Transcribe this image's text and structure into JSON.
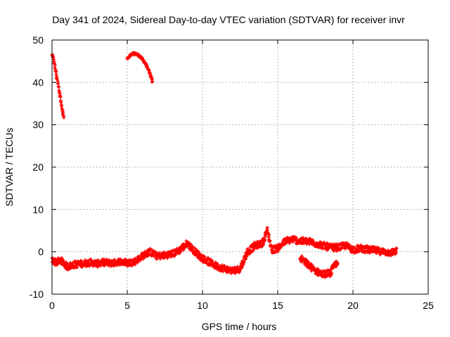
{
  "colors": {
    "series": "#ff0000",
    "grid": "#a0a0a0",
    "axis": "#000000",
    "background": "#ffffff"
  },
  "chart_data": {
    "type": "scatter",
    "title": "Day 341 of 2024, Sidereal Day-to-day VTEC variation (SDTVAR) for receiver invr",
    "xlabel": "GPS time / hours",
    "ylabel": "SDTVAR / TECUs",
    "xlim": [
      0,
      25
    ],
    "ylim": [
      -10,
      50
    ],
    "xticks": [
      0,
      5,
      10,
      15,
      20,
      25
    ],
    "yticks": [
      -10,
      0,
      10,
      20,
      30,
      40,
      50
    ],
    "grid": true,
    "legend": "none",
    "series": [
      {
        "name": "SDTVAR",
        "segments": [
          {
            "x": [
              0.0,
              0.1,
              0.2,
              0.3,
              0.4,
              0.5,
              0.6,
              0.7,
              0.8
            ],
            "y": [
              46.5,
              45.5,
              43.5,
              41.5,
              39.5,
              37.5,
              35.5,
              33.0,
              31.5
            ]
          },
          {
            "x": [
              5.0,
              5.2,
              5.4,
              5.6,
              5.8,
              6.0,
              6.2,
              6.4,
              6.6,
              6.7
            ],
            "y": [
              45.5,
              46.3,
              46.8,
              46.7,
              46.3,
              45.5,
              44.5,
              43.0,
              41.0,
              39.8
            ]
          },
          {
            "x": [
              0.0,
              0.3,
              0.6,
              1.0,
              1.5,
              2.0,
              2.5,
              3.0,
              3.5,
              4.0,
              4.5,
              5.0,
              5.5,
              6.0,
              6.5,
              7.0,
              7.5,
              8.0,
              8.5,
              9.0,
              9.5,
              10.0,
              10.5,
              11.0,
              11.5,
              12.0,
              12.5,
              13.0,
              13.5,
              14.0,
              14.3,
              14.6,
              15.0,
              15.5,
              16.0,
              16.5,
              17.0,
              17.5,
              18.0,
              18.5,
              19.0,
              19.5,
              20.0,
              20.5,
              21.0,
              21.5,
              22.0,
              22.5,
              22.9
            ],
            "y": [
              -2.0,
              -2.5,
              -2.0,
              -3.5,
              -3.0,
              -2.8,
              -2.5,
              -2.8,
              -2.5,
              -2.7,
              -2.3,
              -2.6,
              -2.3,
              -1.0,
              0.0,
              -1.0,
              -0.8,
              -0.5,
              0.5,
              2.0,
              0.0,
              -1.5,
              -2.5,
              -3.5,
              -4.0,
              -4.5,
              -4.0,
              0.0,
              1.5,
              2.0,
              5.0,
              0.5,
              0.8,
              2.5,
              3.0,
              2.5,
              2.5,
              2.0,
              1.5,
              1.0,
              1.0,
              1.5,
              0.5,
              0.8,
              0.5,
              0.3,
              0.0,
              -0.2,
              0.2
            ]
          },
          {
            "x": [
              16.5,
              17.0,
              17.5,
              18.0,
              18.5,
              19.0
            ],
            "y": [
              -1.5,
              -3.0,
              -4.5,
              -5.3,
              -5.0,
              -2.0
            ]
          }
        ]
      }
    ]
  }
}
